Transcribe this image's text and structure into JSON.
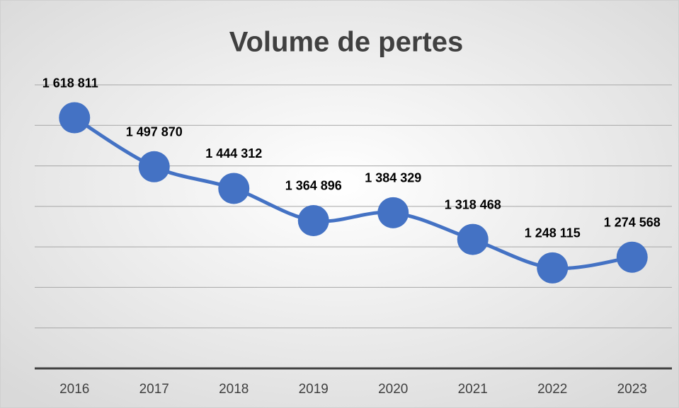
{
  "chart_data": {
    "type": "line",
    "title": "Volume de pertes",
    "categories": [
      "2016",
      "2017",
      "2018",
      "2019",
      "2020",
      "2021",
      "2022",
      "2023"
    ],
    "series": [
      {
        "name": "Volume de pertes",
        "color": "#4472c4",
        "values": [
          1618811,
          1497870,
          1444312,
          1364896,
          1384329,
          1318468,
          1248115,
          1274568
        ],
        "value_labels": [
          "1 618 811",
          "1 497 870",
          "1 444 312",
          "1 364 896",
          "1 384 329",
          "1 318 468",
          "1 248 115",
          "1 274 568"
        ]
      }
    ],
    "ylim": [
      1000000,
      1700000
    ],
    "yticks": [
      1000000,
      1100000,
      1200000,
      1300000,
      1400000,
      1500000,
      1600000,
      1700000
    ],
    "grid": true
  }
}
